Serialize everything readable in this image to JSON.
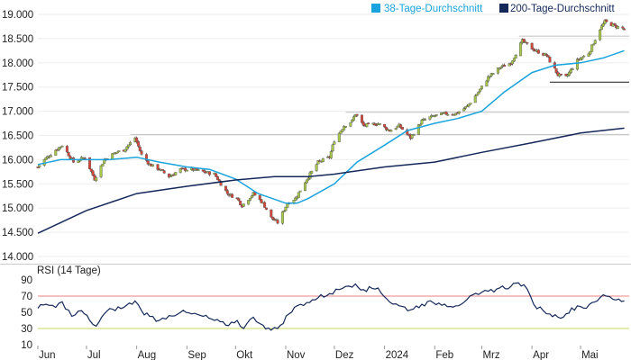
{
  "chart_data": [
    {
      "type": "candlestick",
      "x_range": [
        "2023-06-01",
        "2024-05-31"
      ],
      "ylim": [
        14000,
        19000
      ],
      "y_ticks": [
        14000,
        14500,
        15000,
        15500,
        16000,
        16500,
        17000,
        17500,
        18000,
        18500,
        19000
      ],
      "y_tick_labels": [
        "14.000",
        "14.500",
        "15.000",
        "15.500",
        "16.000",
        "16.500",
        "17.000",
        "17.500",
        "18.000",
        "18.500",
        "19.000"
      ],
      "x_tick_labels": [
        "Jun",
        "Jul",
        "Aug",
        "Sep",
        "Okt",
        "Nov",
        "Dez",
        "2024",
        "Feb",
        "Mrz",
        "Apr",
        "Mai"
      ],
      "legend_position": "top-right",
      "candle_up_color": "#a8c84a",
      "candle_down_color": "#d6453a",
      "closes_approx": [
        [
          "2023-06-01",
          15850
        ],
        [
          "2023-06-05",
          16000
        ],
        [
          "2023-06-12",
          16200
        ],
        [
          "2023-06-16",
          16300
        ],
        [
          "2023-06-23",
          15950
        ],
        [
          "2023-06-30",
          16050
        ],
        [
          "2023-07-06",
          15600
        ],
        [
          "2023-07-12",
          16000
        ],
        [
          "2023-07-19",
          16150
        ],
        [
          "2023-07-24",
          16200
        ],
        [
          "2023-07-31",
          16450
        ],
        [
          "2023-08-04",
          16100
        ],
        [
          "2023-08-09",
          15900
        ],
        [
          "2023-08-15",
          15800
        ],
        [
          "2023-08-21",
          15650
        ],
        [
          "2023-08-28",
          15800
        ],
        [
          "2023-09-04",
          15800
        ],
        [
          "2023-09-11",
          15750
        ],
        [
          "2023-09-18",
          15700
        ],
        [
          "2023-09-26",
          15300
        ],
        [
          "2023-10-02",
          15200
        ],
        [
          "2023-10-05",
          15050
        ],
        [
          "2023-10-12",
          15300
        ],
        [
          "2023-10-18",
          15100
        ],
        [
          "2023-10-23",
          14800
        ],
        [
          "2023-10-27",
          14700
        ],
        [
          "2023-11-02",
          15100
        ],
        [
          "2023-11-07",
          15200
        ],
        [
          "2023-11-14",
          15600
        ],
        [
          "2023-11-21",
          15950
        ],
        [
          "2023-11-28",
          16050
        ],
        [
          "2023-12-01",
          16400
        ],
        [
          "2023-12-07",
          16700
        ],
        [
          "2023-12-12",
          16800
        ],
        [
          "2023-12-14",
          16950
        ],
        [
          "2023-12-19",
          16700
        ],
        [
          "2023-12-28",
          16750
        ],
        [
          "2024-01-04",
          16600
        ],
        [
          "2024-01-10",
          16700
        ],
        [
          "2024-01-17",
          16450
        ],
        [
          "2024-01-24",
          16800
        ],
        [
          "2024-01-31",
          16900
        ],
        [
          "2024-02-07",
          16950
        ],
        [
          "2024-02-14",
          16950
        ],
        [
          "2024-02-21",
          17100
        ],
        [
          "2024-02-28",
          17400
        ],
        [
          "2024-03-05",
          17700
        ],
        [
          "2024-03-12",
          17900
        ],
        [
          "2024-03-19",
          18000
        ],
        [
          "2024-03-26",
          18450
        ],
        [
          "2024-04-03",
          18250
        ],
        [
          "2024-04-10",
          18150
        ],
        [
          "2024-04-17",
          17750
        ],
        [
          "2024-04-22",
          17700
        ],
        [
          "2024-04-29",
          18050
        ],
        [
          "2024-05-06",
          18200
        ],
        [
          "2024-05-13",
          18700
        ],
        [
          "2024-05-16",
          18850
        ],
        [
          "2024-05-23",
          18750
        ],
        [
          "2024-05-28",
          18700
        ]
      ],
      "series": [
        {
          "name": "38-Tage-Durchschnitt",
          "color": "#1aa3dc",
          "points": [
            [
              "2023-06-01",
              15900
            ],
            [
              "2023-06-15",
              16000
            ],
            [
              "2023-07-01",
              16000
            ],
            [
              "2023-07-15",
              16000
            ],
            [
              "2023-08-01",
              16050
            ],
            [
              "2023-08-15",
              15950
            ],
            [
              "2023-09-01",
              15850
            ],
            [
              "2023-09-15",
              15800
            ],
            [
              "2023-10-01",
              15600
            ],
            [
              "2023-10-15",
              15300
            ],
            [
              "2023-11-01",
              15100
            ],
            [
              "2023-11-08",
              15100
            ],
            [
              "2023-11-15",
              15200
            ],
            [
              "2023-12-01",
              15500
            ],
            [
              "2023-12-15",
              15950
            ],
            [
              "2024-01-01",
              16300
            ],
            [
              "2024-01-15",
              16600
            ],
            [
              "2024-02-01",
              16750
            ],
            [
              "2024-02-15",
              16850
            ],
            [
              "2024-03-01",
              17000
            ],
            [
              "2024-03-15",
              17400
            ],
            [
              "2024-04-01",
              17800
            ],
            [
              "2024-04-15",
              17950
            ],
            [
              "2024-05-01",
              18000
            ],
            [
              "2024-05-15",
              18100
            ],
            [
              "2024-05-28",
              18250
            ]
          ]
        },
        {
          "name": "200-Tage-Durchschnitt",
          "color": "#14285a",
          "points": [
            [
              "2023-06-01",
              14480
            ],
            [
              "2023-07-01",
              14950
            ],
            [
              "2023-08-01",
              15300
            ],
            [
              "2023-09-01",
              15450
            ],
            [
              "2023-10-01",
              15580
            ],
            [
              "2023-10-25",
              15650
            ],
            [
              "2023-11-15",
              15650
            ],
            [
              "2023-12-01",
              15700
            ],
            [
              "2024-01-01",
              15850
            ],
            [
              "2024-02-01",
              15950
            ],
            [
              "2024-03-01",
              16150
            ],
            [
              "2024-04-01",
              16350
            ],
            [
              "2024-05-01",
              16550
            ],
            [
              "2024-05-28",
              16650
            ]
          ]
        }
      ],
      "horizontal_lines": [
        {
          "y": 18550,
          "from": "2024-03-24",
          "color": "#c8c8c8"
        },
        {
          "y": 17600,
          "from": "2024-04-12",
          "color": "#333333"
        },
        {
          "y": 16980,
          "from": "2023-12-08",
          "color": "#c8c8c8"
        },
        {
          "y": 16520,
          "from": "2023-07-28",
          "color": "#c8c8c8"
        }
      ]
    },
    {
      "type": "line",
      "title": "RSI (14 Tage)",
      "ylim": [
        10,
        90
      ],
      "y_ticks": [
        10,
        30,
        50,
        70,
        90
      ],
      "y_tick_labels": [
        "10",
        "30",
        "50",
        "70",
        "90"
      ],
      "reference_lines": [
        {
          "y": 70,
          "color": "#e88080"
        },
        {
          "y": 30,
          "color": "#c8d85a"
        }
      ],
      "series": [
        {
          "color": "#14285a",
          "points": [
            [
              "2023-06-01",
              55
            ],
            [
              "2023-06-06",
              60
            ],
            [
              "2023-06-12",
              56
            ],
            [
              "2023-06-16",
              63
            ],
            [
              "2023-06-22",
              45
            ],
            [
              "2023-06-28",
              52
            ],
            [
              "2023-07-03",
              40
            ],
            [
              "2023-07-07",
              33
            ],
            [
              "2023-07-12",
              48
            ],
            [
              "2023-07-17",
              54
            ],
            [
              "2023-07-24",
              56
            ],
            [
              "2023-07-31",
              64
            ],
            [
              "2023-08-04",
              52
            ],
            [
              "2023-08-09",
              45
            ],
            [
              "2023-08-15",
              40
            ],
            [
              "2023-08-21",
              46
            ],
            [
              "2023-08-28",
              50
            ],
            [
              "2023-09-04",
              48
            ],
            [
              "2023-09-11",
              45
            ],
            [
              "2023-09-18",
              40
            ],
            [
              "2023-09-25",
              34
            ],
            [
              "2023-10-02",
              40
            ],
            [
              "2023-10-06",
              30
            ],
            [
              "2023-10-12",
              44
            ],
            [
              "2023-10-18",
              34
            ],
            [
              "2023-10-23",
              28
            ],
            [
              "2023-10-27",
              30
            ],
            [
              "2023-11-03",
              48
            ],
            [
              "2023-11-08",
              58
            ],
            [
              "2023-11-14",
              62
            ],
            [
              "2023-11-21",
              68
            ],
            [
              "2023-11-28",
              73
            ],
            [
              "2023-12-04",
              78
            ],
            [
              "2023-12-08",
              82
            ],
            [
              "2023-12-14",
              85
            ],
            [
              "2023-12-19",
              78
            ],
            [
              "2023-12-28",
              80
            ],
            [
              "2024-01-04",
              63
            ],
            [
              "2024-01-10",
              58
            ],
            [
              "2024-01-17",
              53
            ],
            [
              "2024-01-24",
              60
            ],
            [
              "2024-01-31",
              62
            ],
            [
              "2024-02-07",
              60
            ],
            [
              "2024-02-14",
              58
            ],
            [
              "2024-02-21",
              66
            ],
            [
              "2024-02-28",
              72
            ],
            [
              "2024-03-05",
              76
            ],
            [
              "2024-03-12",
              80
            ],
            [
              "2024-03-19",
              82
            ],
            [
              "2024-03-22",
              86
            ],
            [
              "2024-03-27",
              84
            ],
            [
              "2024-04-02",
              60
            ],
            [
              "2024-04-08",
              52
            ],
            [
              "2024-04-12",
              48
            ],
            [
              "2024-04-17",
              44
            ],
            [
              "2024-04-22",
              48
            ],
            [
              "2024-04-29",
              58
            ],
            [
              "2024-05-03",
              55
            ],
            [
              "2024-05-08",
              62
            ],
            [
              "2024-05-13",
              68
            ],
            [
              "2024-05-17",
              70
            ],
            [
              "2024-05-21",
              66
            ],
            [
              "2024-05-28",
              64
            ]
          ]
        }
      ]
    }
  ]
}
